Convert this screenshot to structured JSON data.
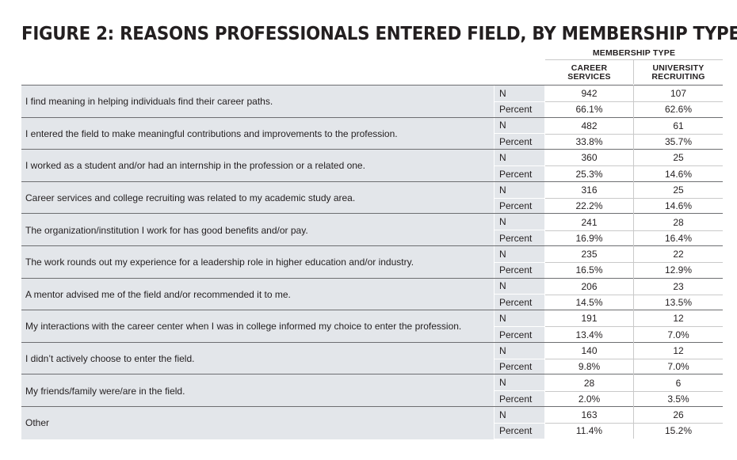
{
  "chart_data": {
    "type": "table",
    "title": "FIGURE 2: REASONS PROFESSIONALS  ENTERED FIELD, BY MEMBERSHIP TYPE",
    "column_group": "MEMBERSHIP TYPE",
    "columns": [
      {
        "line1": "CAREER",
        "line2": "SERVICES"
      },
      {
        "line1": "UNIVERSITY",
        "line2": "RECRUITING"
      }
    ],
    "stat_labels": {
      "n": "N",
      "percent": "Percent"
    },
    "rows": [
      {
        "reason": "I find meaning in helping individuals find their career paths.",
        "n": [
          "942",
          "107"
        ],
        "percent": [
          "66.1%",
          "62.6%"
        ]
      },
      {
        "reason": "I entered the field to make meaningful contributions and improvements to the profession.",
        "n": [
          "482",
          "61"
        ],
        "percent": [
          "33.8%",
          "35.7%"
        ]
      },
      {
        "reason": "I worked as a student and/or had an internship in the profession or a related one.",
        "n": [
          "360",
          "25"
        ],
        "percent": [
          "25.3%",
          "14.6%"
        ]
      },
      {
        "reason": "Career services and college recruiting was related to my academic study area.",
        "n": [
          "316",
          "25"
        ],
        "percent": [
          "22.2%",
          "14.6%"
        ]
      },
      {
        "reason": "The organization/institution I work for has good benefits and/or pay.",
        "n": [
          "241",
          "28"
        ],
        "percent": [
          "16.9%",
          "16.4%"
        ]
      },
      {
        "reason": "The work rounds out my experience for a leadership role in higher education and/or industry.",
        "n": [
          "235",
          "22"
        ],
        "percent": [
          "16.5%",
          "12.9%"
        ]
      },
      {
        "reason": "A mentor advised me of the field and/or recommended it to me.",
        "n": [
          "206",
          "23"
        ],
        "percent": [
          "14.5%",
          "13.5%"
        ]
      },
      {
        "reason": "My interactions with the career center when I was in college informed my choice to enter the profession.",
        "n": [
          "191",
          "12"
        ],
        "percent": [
          "13.4%",
          "7.0%"
        ]
      },
      {
        "reason": "I didn’t actively choose to enter the field.",
        "n": [
          "140",
          "12"
        ],
        "percent": [
          "9.8%",
          "7.0%"
        ]
      },
      {
        "reason": "My friends/family were/are in the field.",
        "n": [
          "28",
          "6"
        ],
        "percent": [
          "2.0%",
          "3.5%"
        ]
      },
      {
        "reason": "Other",
        "n": [
          "163",
          "26"
        ],
        "percent": [
          "11.4%",
          "15.2%"
        ]
      }
    ]
  }
}
